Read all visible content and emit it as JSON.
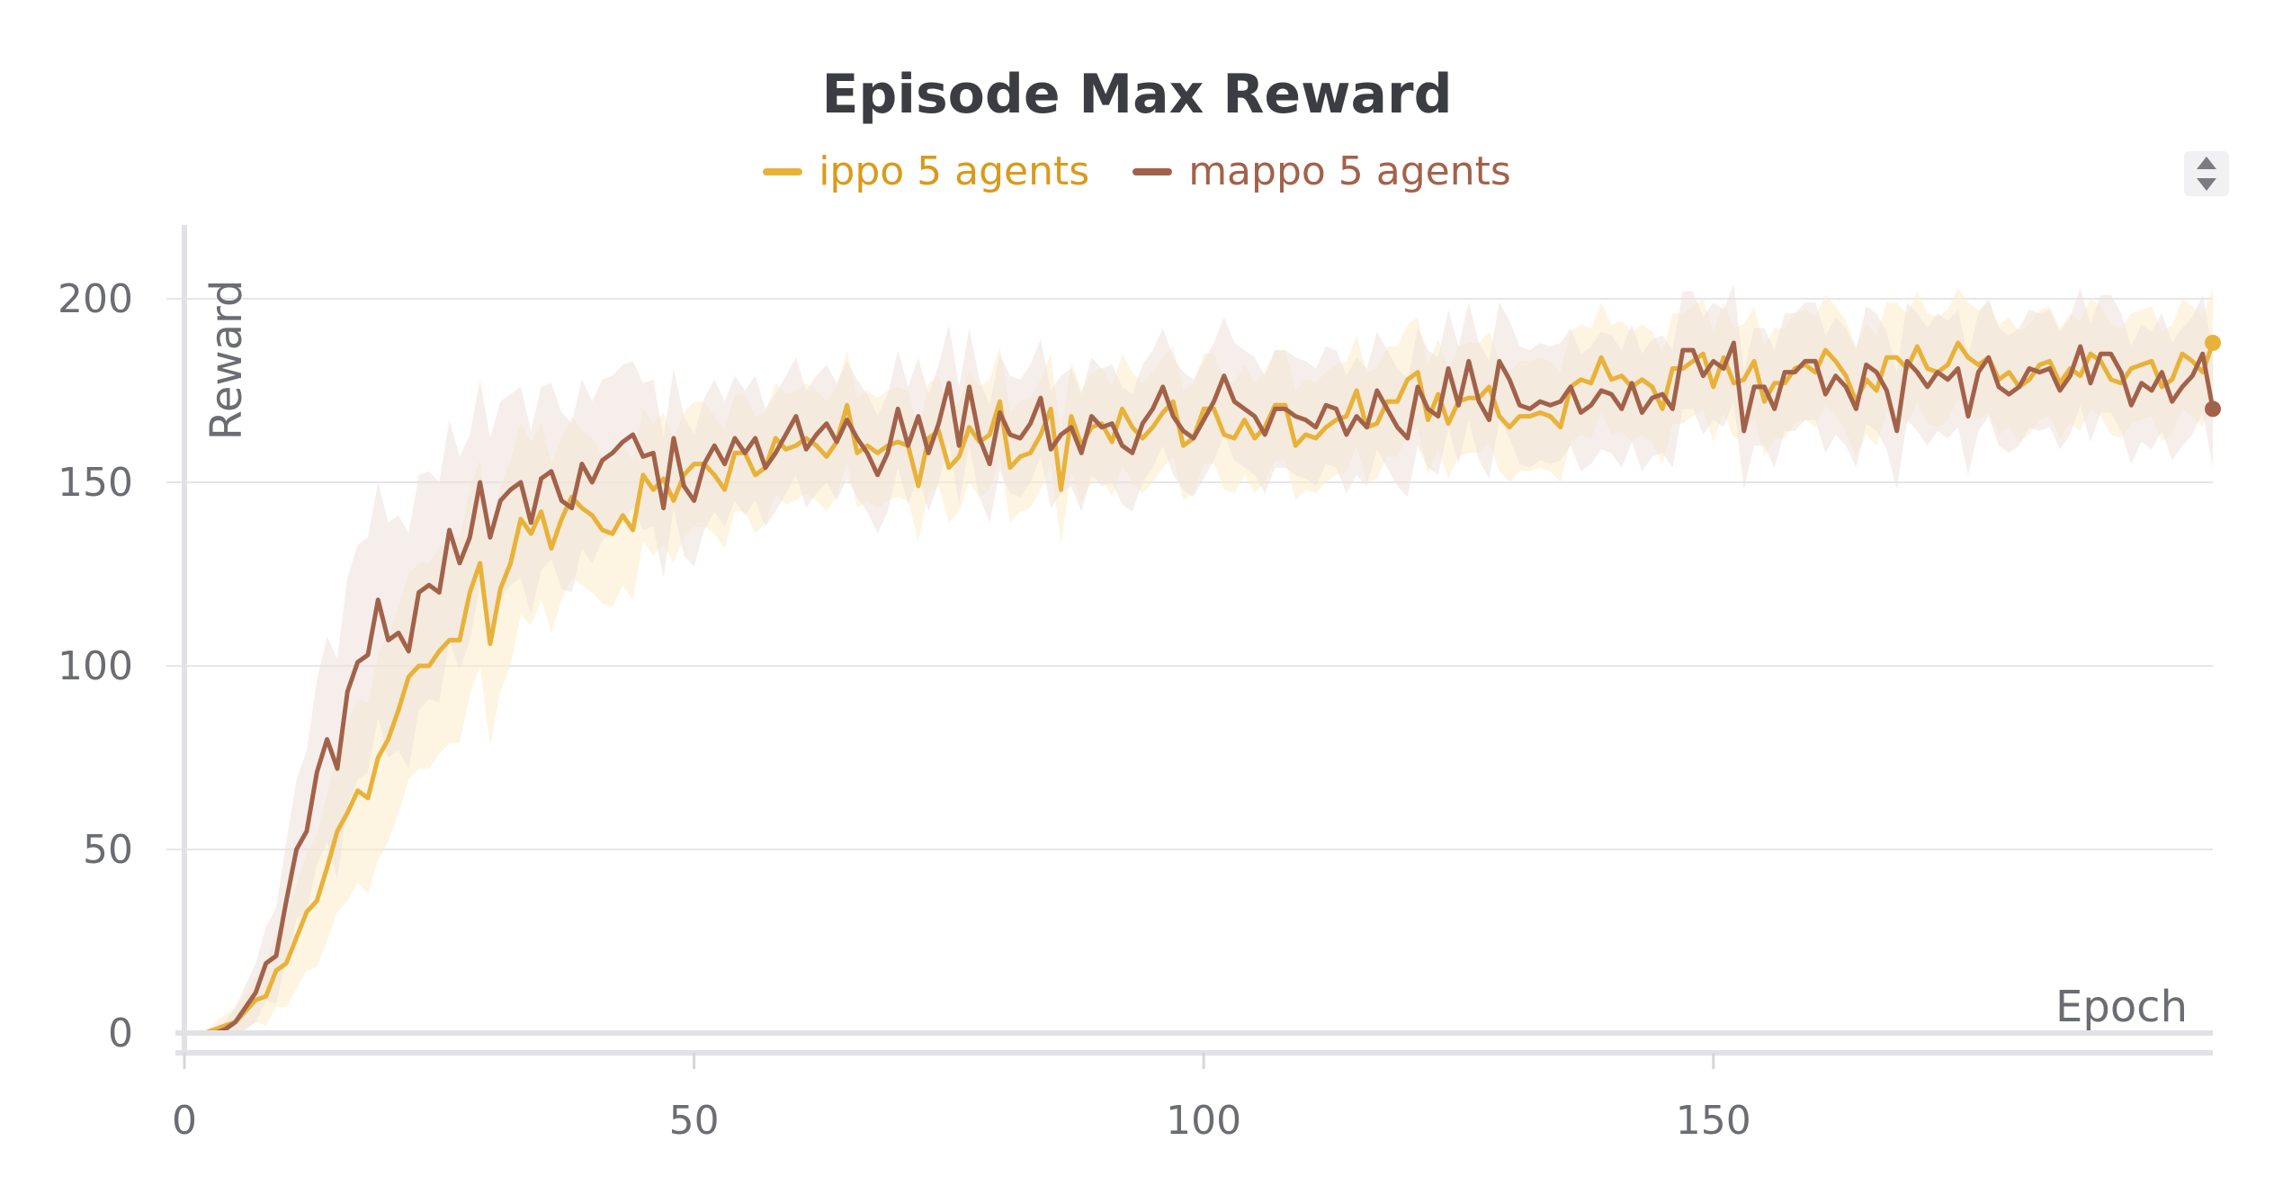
{
  "chart_data": {
    "type": "line",
    "title": "Episode Max Reward",
    "xlabel": "Epoch",
    "ylabel": "Reward",
    "xlim": [
      0,
      199
    ],
    "ylim": [
      0,
      200
    ],
    "x_ticks": [
      0,
      50,
      100,
      150
    ],
    "y_ticks": [
      0,
      50,
      100,
      150,
      200
    ],
    "grid": "horizontal",
    "legend": "top-center",
    "series": [
      {
        "name": "ippo 5 agents",
        "color": "#e8b23a",
        "band_color": "#fbedc8",
        "x_step": 1,
        "values": [
          0,
          0,
          0,
          1,
          2,
          3,
          6,
          9,
          10,
          17,
          19,
          26,
          33,
          36,
          45,
          55,
          60,
          66,
          64,
          75,
          80,
          88,
          97,
          100,
          100,
          104,
          107,
          107,
          120,
          128,
          106,
          121,
          128,
          140,
          136,
          142,
          132,
          140,
          146,
          143,
          141,
          137,
          136,
          141,
          137,
          152,
          148,
          151,
          145,
          152,
          155,
          155,
          152,
          148,
          158,
          158,
          152,
          154,
          162,
          159,
          160,
          162,
          160,
          157,
          161,
          171,
          158,
          160,
          158,
          160,
          161,
          160,
          149,
          162,
          164,
          154,
          157,
          165,
          161,
          163,
          172,
          154,
          157,
          158,
          163,
          170,
          148,
          168,
          160,
          165,
          166,
          161,
          170,
          165,
          162,
          165,
          169,
          172,
          160,
          162,
          170,
          170,
          163,
          162,
          167,
          162,
          165,
          171,
          171,
          160,
          163,
          162,
          165,
          167,
          168,
          175,
          165,
          166,
          172,
          172,
          178,
          180,
          167,
          174,
          166,
          172,
          173,
          173,
          176,
          168,
          165,
          168,
          168,
          169,
          168,
          165,
          176,
          178,
          177,
          184,
          178,
          179,
          176,
          178,
          176,
          170,
          181,
          181,
          183,
          185,
          176,
          184,
          177,
          178,
          183,
          172,
          177,
          177,
          181,
          182,
          180,
          186,
          183,
          179,
          172,
          178,
          175,
          184,
          184,
          181,
          187,
          181,
          180,
          182,
          188,
          184,
          182,
          184,
          178,
          180,
          176,
          178,
          182,
          183,
          177,
          181,
          179,
          185,
          183,
          178,
          177,
          181,
          182,
          183,
          176,
          178,
          185,
          183,
          180,
          188
        ],
        "band_halfwidth": [
          0,
          0,
          0,
          2,
          3,
          4,
          5,
          6,
          8,
          10,
          12,
          14,
          16,
          18,
          20,
          22,
          24,
          25,
          26,
          28,
          28,
          28,
          28,
          28,
          28,
          28,
          28,
          28,
          28,
          28,
          28,
          28,
          28,
          26,
          25,
          24,
          23,
          22,
          22,
          21,
          21,
          20,
          20,
          19,
          19,
          18,
          18,
          18,
          17,
          17,
          17,
          17,
          16,
          16,
          16,
          16,
          16,
          15,
          15,
          15,
          15,
          15,
          15,
          15,
          15,
          15,
          15,
          15,
          15,
          15,
          15,
          15,
          15,
          15,
          15,
          15,
          15,
          15,
          15,
          15,
          15,
          15,
          15,
          15,
          15,
          15,
          15,
          15,
          15,
          15,
          15,
          15,
          15,
          15,
          15,
          15,
          15,
          15,
          15,
          15,
          15,
          15,
          15,
          15,
          15,
          15,
          15,
          15,
          15,
          15,
          15,
          15,
          15,
          15,
          15,
          15,
          15,
          15,
          15,
          15,
          15,
          15,
          15,
          15,
          15,
          15,
          15,
          15,
          15,
          15,
          15,
          15,
          15,
          15,
          15,
          15,
          15,
          15,
          15,
          15,
          15,
          15,
          15,
          15,
          15,
          15,
          15,
          15,
          15,
          15,
          15,
          15,
          15,
          15,
          15,
          15,
          15,
          15,
          15,
          15,
          15,
          15,
          15,
          15,
          15,
          15,
          15,
          15,
          15,
          15,
          15,
          15,
          15,
          15,
          15,
          15,
          15,
          15,
          15,
          15,
          15,
          15,
          15,
          15,
          15,
          15,
          15,
          15,
          15,
          15,
          15,
          15,
          15,
          15,
          15,
          15,
          15,
          15,
          15,
          15
        ]
      },
      {
        "name": "mappo 5 agents",
        "color": "#a2624a",
        "band_color": "#ede0da",
        "x_step": 1,
        "values": [
          0,
          0,
          0,
          0,
          1,
          3,
          7,
          11,
          19,
          21,
          36,
          50,
          55,
          71,
          80,
          72,
          93,
          101,
          103,
          118,
          107,
          109,
          104,
          120,
          122,
          120,
          137,
          128,
          135,
          150,
          135,
          145,
          148,
          150,
          139,
          151,
          153,
          145,
          143,
          155,
          150,
          156,
          158,
          161,
          163,
          157,
          158,
          143,
          162,
          149,
          145,
          155,
          160,
          155,
          162,
          158,
          162,
          154,
          158,
          163,
          168,
          159,
          163,
          166,
          161,
          167,
          162,
          158,
          152,
          158,
          170,
          160,
          168,
          158,
          166,
          177,
          160,
          176,
          162,
          155,
          169,
          163,
          162,
          166,
          173,
          159,
          163,
          165,
          158,
          168,
          165,
          166,
          160,
          158,
          166,
          170,
          176,
          168,
          164,
          162,
          167,
          172,
          179,
          172,
          170,
          168,
          163,
          170,
          170,
          168,
          167,
          165,
          171,
          170,
          163,
          168,
          165,
          175,
          170,
          165,
          162,
          176,
          170,
          168,
          181,
          171,
          183,
          172,
          167,
          183,
          178,
          171,
          170,
          172,
          171,
          172,
          176,
          169,
          171,
          175,
          174,
          170,
          177,
          169,
          173,
          174,
          170,
          186,
          186,
          179,
          183,
          181,
          188,
          164,
          176,
          176,
          170,
          180,
          180,
          183,
          183,
          174,
          179,
          176,
          170,
          182,
          180,
          175,
          164,
          183,
          180,
          176,
          180,
          178,
          181,
          168,
          180,
          184,
          176,
          174,
          176,
          181,
          180,
          181,
          175,
          179,
          187,
          177,
          185,
          185,
          180,
          171,
          177,
          175,
          180,
          172,
          176,
          179,
          185,
          170
        ],
        "band_halfwidth": [
          0,
          0,
          0,
          1,
          2,
          4,
          6,
          8,
          10,
          13,
          16,
          19,
          22,
          25,
          28,
          30,
          31,
          32,
          32,
          32,
          32,
          32,
          32,
          32,
          31,
          30,
          30,
          29,
          28,
          28,
          27,
          27,
          26,
          26,
          25,
          25,
          24,
          24,
          23,
          23,
          22,
          22,
          21,
          21,
          20,
          20,
          20,
          19,
          19,
          19,
          18,
          18,
          18,
          17,
          17,
          17,
          17,
          16,
          16,
          16,
          16,
          16,
          16,
          16,
          16,
          16,
          16,
          16,
          16,
          16,
          16,
          16,
          16,
          16,
          16,
          16,
          16,
          16,
          16,
          16,
          16,
          16,
          16,
          16,
          16,
          16,
          16,
          16,
          16,
          16,
          16,
          16,
          16,
          16,
          16,
          16,
          16,
          16,
          16,
          16,
          16,
          16,
          16,
          16,
          16,
          16,
          16,
          16,
          16,
          16,
          16,
          16,
          16,
          16,
          16,
          16,
          16,
          16,
          16,
          16,
          16,
          16,
          16,
          16,
          16,
          16,
          16,
          16,
          16,
          16,
          16,
          16,
          16,
          16,
          16,
          16,
          16,
          16,
          16,
          16,
          16,
          16,
          16,
          16,
          16,
          16,
          16,
          16,
          16,
          16,
          16,
          16,
          16,
          16,
          16,
          16,
          16,
          16,
          16,
          16,
          16,
          16,
          16,
          16,
          16,
          16,
          16,
          16,
          16,
          16,
          16,
          16,
          16,
          16,
          16,
          16,
          16,
          16,
          16,
          16,
          16,
          16,
          16,
          16,
          16,
          16,
          16,
          16,
          16,
          16,
          16,
          16,
          16,
          16,
          16,
          16,
          16,
          16,
          16,
          16
        ]
      }
    ]
  }
}
